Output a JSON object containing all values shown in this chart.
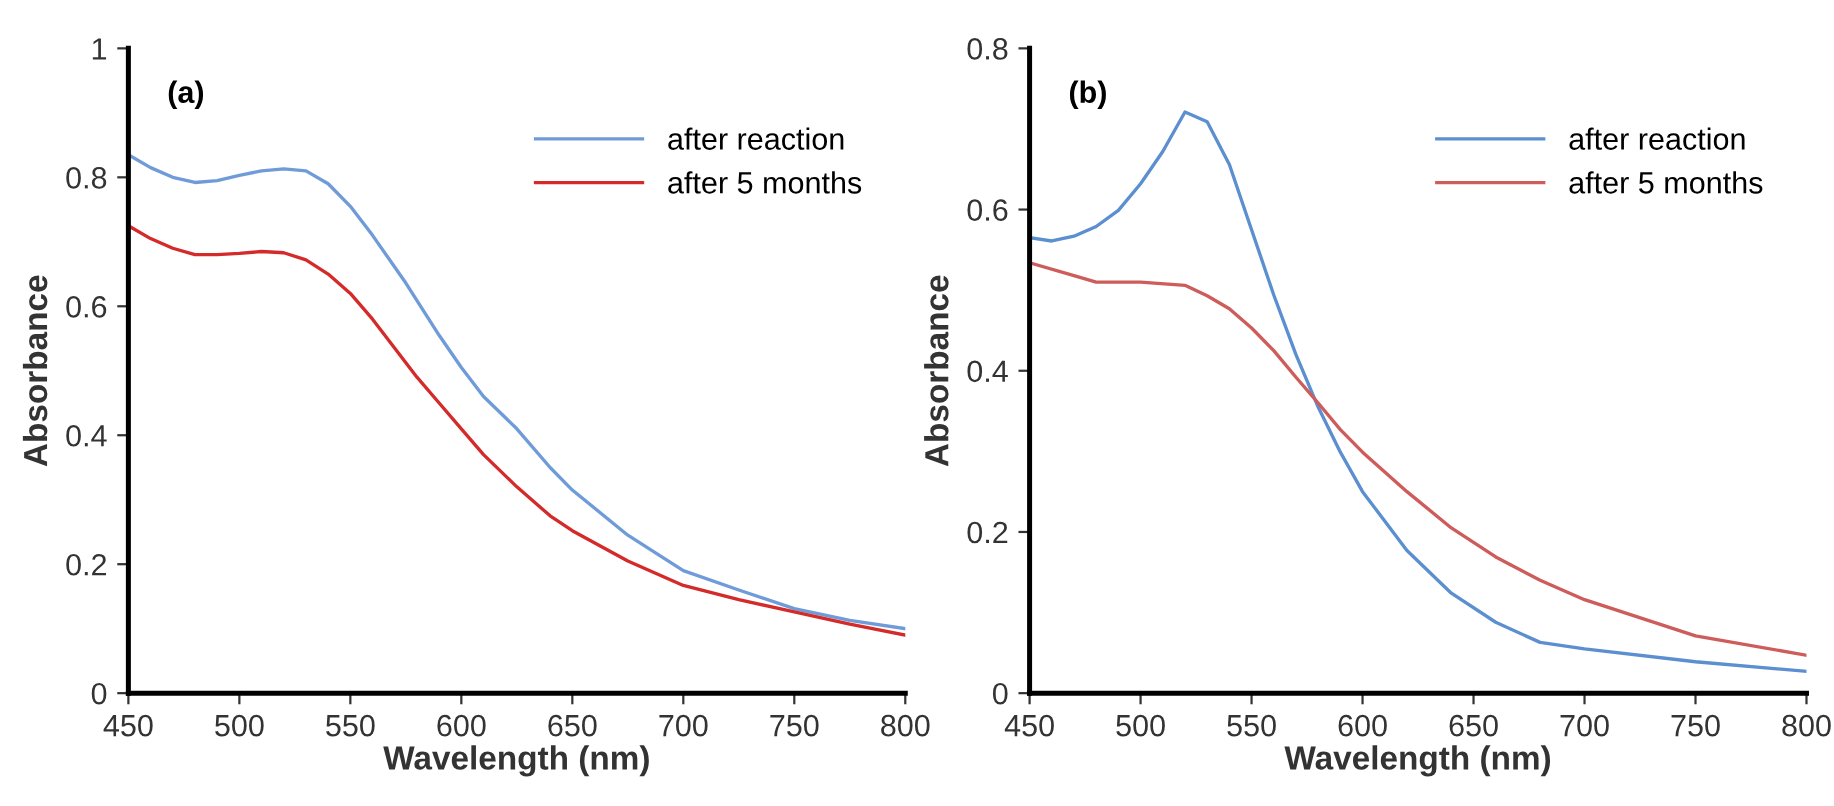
{
  "chart_data": [
    {
      "type": "line",
      "annotations": [
        "(a)"
      ],
      "xlabel": "Wavelength (nm)",
      "ylabel": "Absorbance",
      "xlim": [
        450,
        800
      ],
      "xticks": [
        450,
        500,
        550,
        600,
        650,
        700,
        750,
        800
      ],
      "ylim": [
        0,
        1
      ],
      "yticks": [
        0,
        0.2,
        0.4,
        0.6,
        0.8,
        1
      ],
      "legend": "top right",
      "grid": false,
      "series": [
        {
          "name": "after reaction",
          "color": "#6f9bd8",
          "x": [
            450,
            460,
            470,
            480,
            490,
            500,
            510,
            520,
            530,
            540,
            550,
            560,
            575,
            590,
            600,
            610,
            625,
            640,
            650,
            675,
            700,
            725,
            750,
            775,
            800
          ],
          "values": [
            0.835,
            0.815,
            0.8,
            0.792,
            0.795,
            0.803,
            0.81,
            0.813,
            0.81,
            0.79,
            0.755,
            0.71,
            0.636,
            0.555,
            0.505,
            0.46,
            0.41,
            0.35,
            0.315,
            0.245,
            0.19,
            0.16,
            0.131,
            0.113,
            0.1
          ]
        },
        {
          "name": "after 5 months",
          "color": "#d42a2a",
          "x": [
            450,
            460,
            470,
            480,
            490,
            500,
            510,
            520,
            530,
            540,
            550,
            560,
            570,
            580,
            590,
            600,
            610,
            625,
            640,
            650,
            675,
            700,
            725,
            750,
            775,
            800
          ],
          "values": [
            0.725,
            0.705,
            0.69,
            0.68,
            0.68,
            0.682,
            0.685,
            0.683,
            0.672,
            0.65,
            0.62,
            0.58,
            0.535,
            0.49,
            0.45,
            0.41,
            0.37,
            0.32,
            0.275,
            0.252,
            0.205,
            0.167,
            0.145,
            0.126,
            0.107,
            0.09
          ]
        }
      ]
    },
    {
      "type": "line",
      "annotations": [
        "(b)"
      ],
      "xlabel": "Wavelength (nm)",
      "ylabel": "Absorbance",
      "xlim": [
        450,
        800
      ],
      "xticks": [
        450,
        500,
        550,
        600,
        650,
        700,
        750,
        800
      ],
      "ylim": [
        0,
        0.8
      ],
      "yticks": [
        0,
        0.2,
        0.4,
        0.6,
        0.8
      ],
      "legend": "top right",
      "grid": false,
      "series": [
        {
          "name": "after reaction",
          "color": "#5b8fd0",
          "x": [
            450,
            460,
            470,
            480,
            490,
            500,
            510,
            520,
            530,
            540,
            550,
            560,
            570,
            580,
            590,
            600,
            620,
            640,
            660,
            680,
            700,
            750,
            800
          ],
          "values": [
            0.565,
            0.561,
            0.567,
            0.579,
            0.599,
            0.632,
            0.672,
            0.721,
            0.709,
            0.656,
            0.575,
            0.494,
            0.42,
            0.355,
            0.299,
            0.25,
            0.177,
            0.124,
            0.088,
            0.063,
            0.055,
            0.039,
            0.027
          ]
        },
        {
          "name": "after 5 months",
          "color": "#cd5c5a",
          "x": [
            450,
            470,
            480,
            500,
            520,
            530,
            540,
            550,
            560,
            570,
            580,
            590,
            600,
            620,
            640,
            660,
            680,
            700,
            750,
            800
          ],
          "values": [
            0.534,
            0.518,
            0.51,
            0.51,
            0.506,
            0.493,
            0.477,
            0.453,
            0.425,
            0.392,
            0.36,
            0.327,
            0.299,
            0.25,
            0.205,
            0.169,
            0.14,
            0.116,
            0.071,
            0.047
          ]
        }
      ]
    }
  ]
}
